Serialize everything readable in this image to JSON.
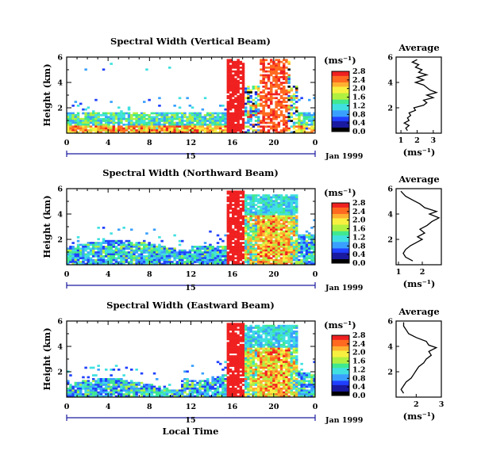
{
  "colors": {
    "scale": [
      "#000000",
      "#1a1aa0",
      "#2040ff",
      "#3aa0ff",
      "#40e0e0",
      "#40e890",
      "#b0f040",
      "#f8f040",
      "#ffb030",
      "#ff6a20",
      "#f02020"
    ]
  },
  "chart_data": [
    {
      "type": "heatmap",
      "title": "Spectral Width (Vertical Beam)",
      "ylabel": "Height (km)",
      "xlabel": "",
      "x_ticks": [
        "0",
        "4",
        "8",
        "12",
        "16",
        "20",
        "0"
      ],
      "x_sub_label": "15",
      "date_label": "Jan 1999",
      "y_ticks": [
        "2",
        "4",
        "6"
      ],
      "ylim": [
        0,
        6
      ],
      "xlim": [
        0,
        24
      ],
      "colorbar": {
        "unit": "(ms⁻¹)",
        "ticks": [
          "0.0",
          "0.4",
          "0.8",
          "1.2",
          "1.6",
          "2.0",
          "2.4",
          "2.8"
        ],
        "range": [
          0,
          2.8
        ]
      },
      "average": {
        "title": "Average",
        "xlabel": "(ms⁻¹)",
        "x_ticks": [
          "1",
          "2",
          "3"
        ],
        "xlim": [
          0.7,
          3.5
        ],
        "y_ticks": [
          "2",
          "4",
          "6"
        ],
        "ylim": [
          0,
          6
        ],
        "profile": [
          [
            1.4,
            0.2
          ],
          [
            1.3,
            0.4
          ],
          [
            1.5,
            0.6
          ],
          [
            1.2,
            0.8
          ],
          [
            1.5,
            1.0
          ],
          [
            1.4,
            1.2
          ],
          [
            1.6,
            1.4
          ],
          [
            1.5,
            1.6
          ],
          [
            1.9,
            1.8
          ],
          [
            1.8,
            2.0
          ],
          [
            2.4,
            2.2
          ],
          [
            2.6,
            2.4
          ],
          [
            2.4,
            2.6
          ],
          [
            3.0,
            2.8
          ],
          [
            2.6,
            3.0
          ],
          [
            3.2,
            3.2
          ],
          [
            2.8,
            3.4
          ],
          [
            2.6,
            3.6
          ],
          [
            2.4,
            3.8
          ],
          [
            1.9,
            4.0
          ],
          [
            2.4,
            4.2
          ],
          [
            2.0,
            4.4
          ],
          [
            2.6,
            4.6
          ],
          [
            2.1,
            4.8
          ],
          [
            2.3,
            5.0
          ],
          [
            1.9,
            5.2
          ],
          [
            2.1,
            5.4
          ],
          [
            1.7,
            5.6
          ],
          [
            2.0,
            5.8
          ]
        ]
      }
    },
    {
      "type": "heatmap",
      "title": "Spectral Width (Northward Beam)",
      "ylabel": "Height (km)",
      "xlabel": "",
      "x_ticks": [
        "0",
        "4",
        "8",
        "12",
        "16",
        "20",
        "0"
      ],
      "x_sub_label": "15",
      "date_label": "Jan 1999",
      "y_ticks": [
        "2",
        "4",
        "6"
      ],
      "ylim": [
        0,
        6
      ],
      "xlim": [
        0,
        24
      ],
      "colorbar": {
        "unit": "(ms⁻¹)",
        "ticks": [
          "0.0",
          "0.4",
          "0.8",
          "1.2",
          "1.6",
          "2.0",
          "2.4",
          "2.8"
        ],
        "range": [
          0,
          2.8
        ]
      },
      "average": {
        "title": "Average",
        "xlabel": "(ms⁻¹)",
        "x_ticks": [
          "1",
          "2"
        ],
        "xlim": [
          0.9,
          2.8
        ],
        "y_ticks": [
          "2",
          "4",
          "6"
        ],
        "ylim": [
          0,
          6
        ],
        "profile": [
          [
            1.6,
            0.3
          ],
          [
            1.3,
            0.6
          ],
          [
            1.2,
            0.9
          ],
          [
            1.3,
            1.2
          ],
          [
            1.5,
            1.5
          ],
          [
            1.8,
            1.8
          ],
          [
            2.0,
            2.0
          ],
          [
            1.8,
            2.2
          ],
          [
            2.1,
            2.5
          ],
          [
            1.9,
            2.8
          ],
          [
            2.2,
            3.1
          ],
          [
            2.4,
            3.4
          ],
          [
            2.7,
            3.7
          ],
          [
            2.3,
            4.0
          ],
          [
            2.6,
            4.2
          ],
          [
            2.1,
            4.5
          ],
          [
            1.9,
            4.8
          ],
          [
            1.6,
            5.1
          ],
          [
            1.3,
            5.4
          ],
          [
            1.2,
            5.6
          ],
          [
            1.1,
            5.8
          ]
        ]
      }
    },
    {
      "type": "heatmap",
      "title": "Spectral Width (Eastward Beam)",
      "ylabel": "Height (km)",
      "xlabel": "Local Time",
      "x_ticks": [
        "0",
        "4",
        "8",
        "12",
        "16",
        "20",
        "0"
      ],
      "x_sub_label": "15",
      "date_label": "Jan 1999",
      "y_ticks": [
        "2",
        "4",
        "6"
      ],
      "ylim": [
        0,
        6
      ],
      "xlim": [
        0,
        24
      ],
      "colorbar": {
        "unit": "(ms⁻¹)",
        "ticks": [
          "0.0",
          "0.4",
          "0.8",
          "1.2",
          "1.6",
          "2.0",
          "2.4",
          "2.8"
        ],
        "range": [
          0,
          2.8
        ]
      },
      "average": {
        "title": "Average",
        "xlabel": "(ms⁻¹)",
        "x_ticks": [
          "2",
          "3"
        ],
        "xlim": [
          1.2,
          3.0
        ],
        "y_ticks": [
          "2",
          "4",
          "6"
        ],
        "ylim": [
          0,
          6
        ],
        "profile": [
          [
            1.5,
            0.3
          ],
          [
            1.4,
            0.6
          ],
          [
            1.5,
            0.9
          ],
          [
            1.6,
            1.2
          ],
          [
            1.8,
            1.5
          ],
          [
            1.9,
            1.8
          ],
          [
            2.0,
            2.1
          ],
          [
            2.1,
            2.4
          ],
          [
            2.3,
            2.7
          ],
          [
            2.4,
            3.0
          ],
          [
            2.6,
            3.3
          ],
          [
            2.5,
            3.6
          ],
          [
            2.8,
            3.9
          ],
          [
            2.5,
            4.1
          ],
          [
            2.4,
            4.4
          ],
          [
            2.0,
            4.7
          ],
          [
            1.7,
            5.0
          ],
          [
            1.6,
            5.3
          ],
          [
            1.5,
            5.6
          ],
          [
            1.5,
            5.9
          ]
        ]
      }
    }
  ]
}
